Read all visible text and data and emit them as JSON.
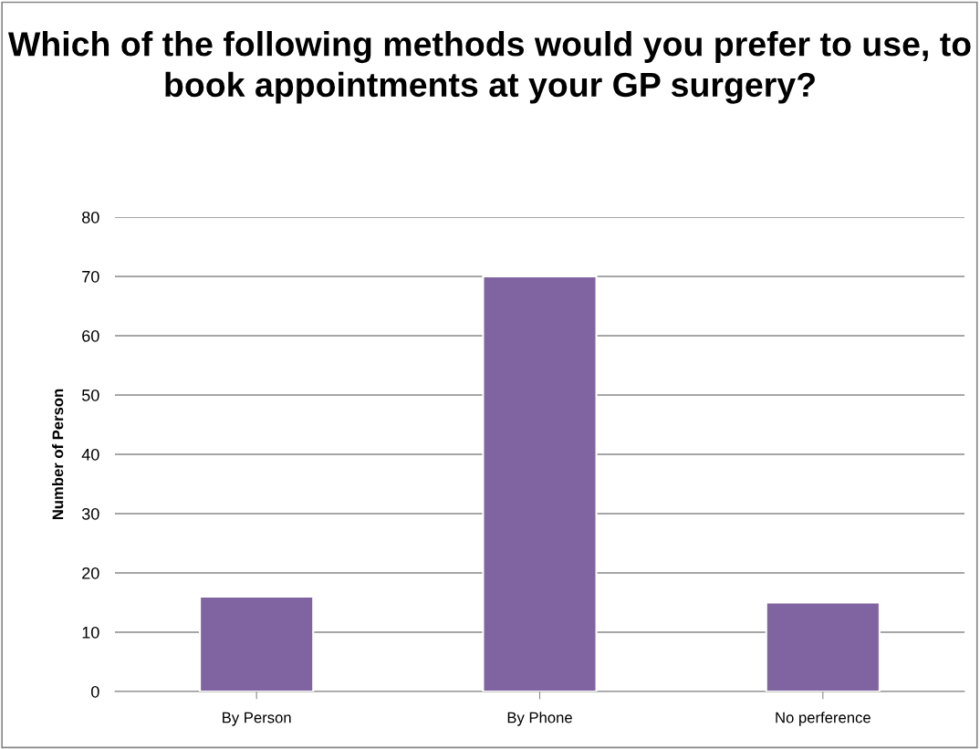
{
  "chart_data": {
    "type": "bar",
    "title": "Which of the following methods would you prefer to use, to book appointments at your GP surgery?",
    "ylabel": "Number of Person",
    "categories": [
      "By Person",
      "By Phone",
      "No perference"
    ],
    "values": [
      16,
      70,
      15
    ],
    "color": "#8064a2",
    "ylim": [
      0,
      80
    ],
    "yticks": [
      0,
      10,
      20,
      30,
      40,
      50,
      60,
      70,
      80
    ],
    "grid": "y",
    "legend": false
  }
}
